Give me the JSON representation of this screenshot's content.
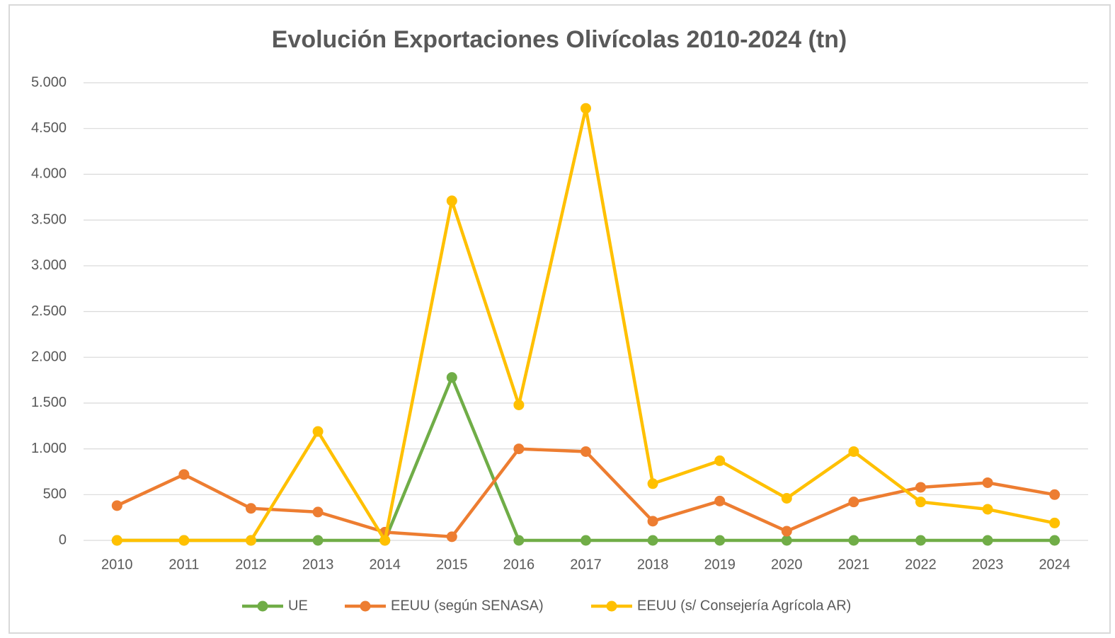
{
  "chart_data": {
    "type": "line",
    "title": "Evolución Exportaciones Olivícolas 2010-2024 (tn)",
    "categories": [
      "2010",
      "2011",
      "2012",
      "2013",
      "2014",
      "2015",
      "2016",
      "2017",
      "2018",
      "2019",
      "2020",
      "2021",
      "2022",
      "2023",
      "2024"
    ],
    "series": [
      {
        "name": "UE",
        "color": "#70ad47",
        "values": [
          0,
          0,
          0,
          0,
          0,
          1780,
          0,
          0,
          0,
          0,
          0,
          0,
          0,
          0,
          0
        ]
      },
      {
        "name": "EEUU (según SENASA)",
        "color": "#ed7d31",
        "values": [
          380,
          720,
          350,
          310,
          90,
          40,
          1000,
          970,
          210,
          430,
          100,
          420,
          580,
          630,
          500
        ]
      },
      {
        "name": "EEUU (s/ Consejería Agrícola AR)",
        "color": "#ffc000",
        "values": [
          0,
          0,
          0,
          1190,
          0,
          3710,
          1480,
          4720,
          620,
          870,
          460,
          970,
          420,
          340,
          190
        ]
      }
    ],
    "ylim": [
      0,
      5000
    ],
    "yticks": [
      0,
      500,
      {
        "value": 1000,
        "label": "1.000"
      },
      {
        "value": 1500,
        "label": "1.500"
      },
      {
        "value": 2000,
        "label": "2.000"
      },
      {
        "value": 2500,
        "label": "2.500"
      },
      {
        "value": 3000,
        "label": "3.000"
      },
      {
        "value": 3500,
        "label": "3.500"
      },
      {
        "value": 4000,
        "label": "4.000"
      },
      {
        "value": 4500,
        "label": "4.500"
      },
      {
        "value": 5000,
        "label": "5.000"
      }
    ],
    "grid": true,
    "legend": "bottom"
  }
}
